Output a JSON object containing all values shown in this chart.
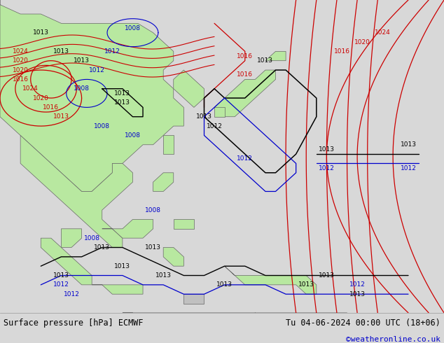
{
  "title_left": "Surface pressure [hPa] ECMWF",
  "title_right": "Tu 04-06-2024 00:00 UTC (18+06)",
  "credit": "©weatheronline.co.uk",
  "bg_ocean": "#d8d8d8",
  "bg_bottom": "#e8e8e8",
  "land_green": "#b8e8a0",
  "land_gray": "#c0c0c0",
  "col_black": "#000000",
  "col_red": "#cc0000",
  "col_blue": "#0000cc",
  "col_coast": "#666666",
  "fig_w": 6.34,
  "fig_h": 4.9,
  "dpi": 100,
  "font_map": 6.5,
  "font_title": 8.5,
  "font_credit": 8.0,
  "map_lon_min": 88,
  "map_lon_max": 175,
  "map_lat_min": -12,
  "map_lat_max": 55
}
